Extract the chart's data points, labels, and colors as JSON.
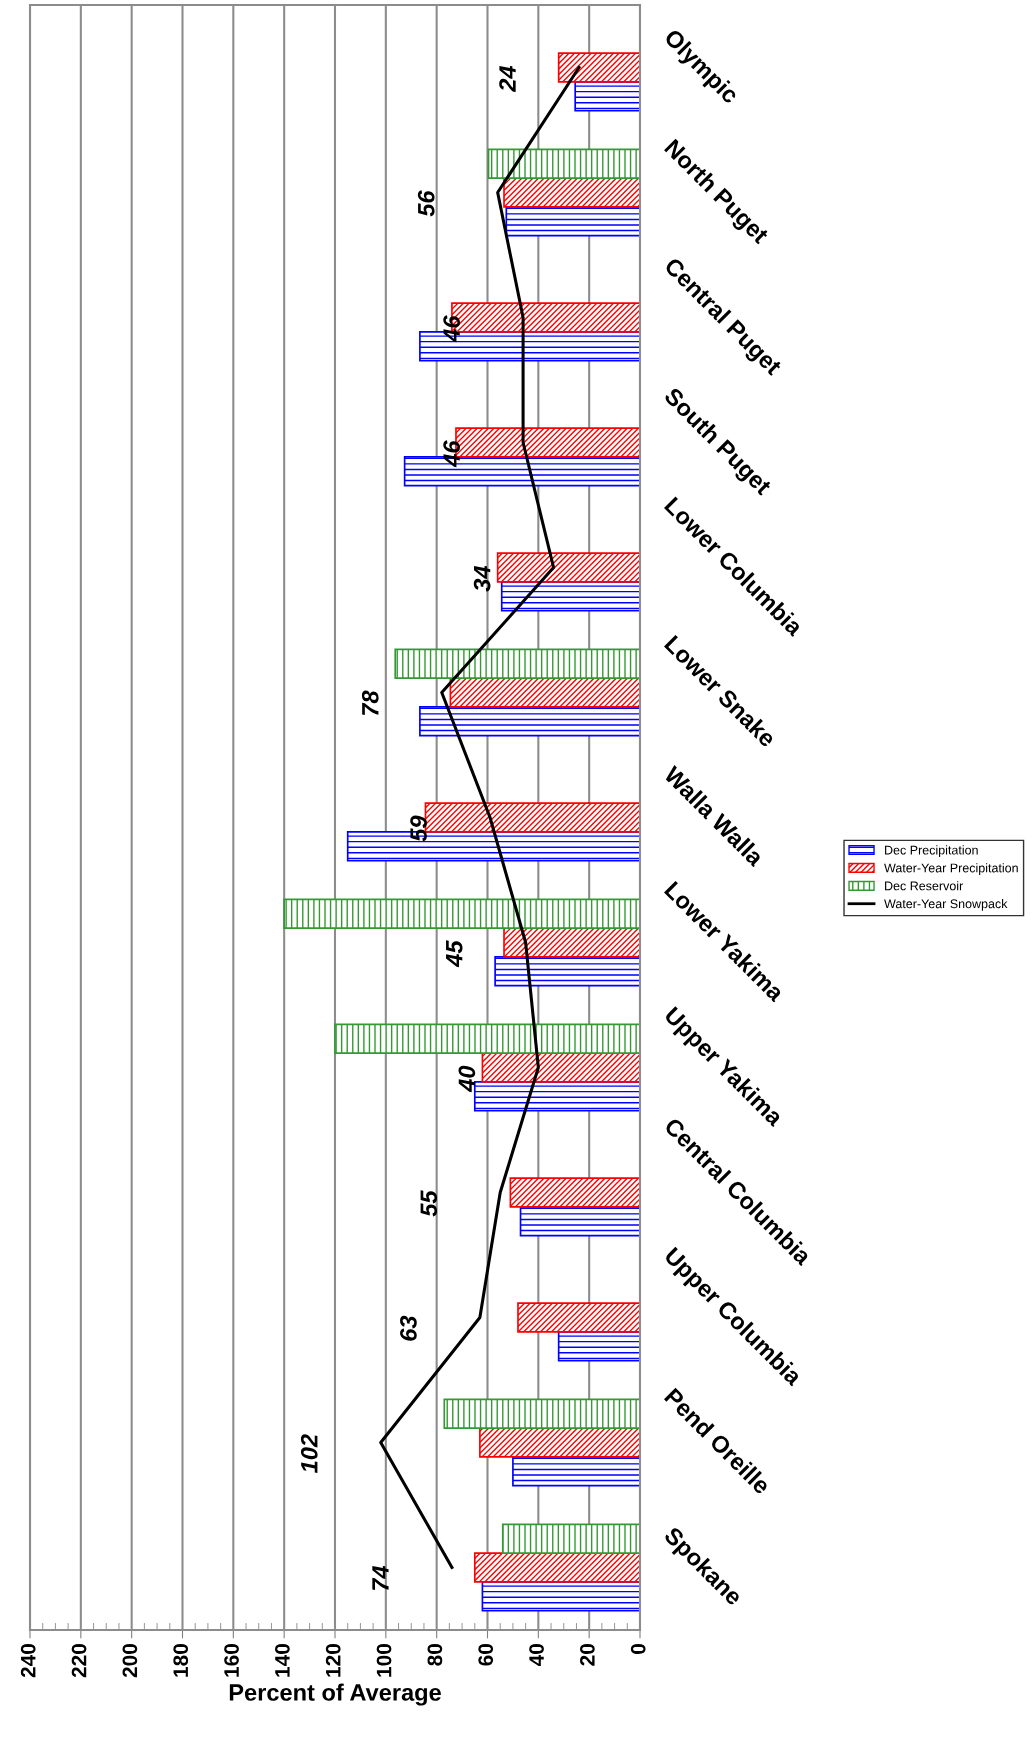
{
  "chart_data": {
    "type": "bar",
    "orientation": "horizontal",
    "xlabel": "Percent of Average",
    "categories": [
      "Olympic",
      "North Puget",
      "Central Puget",
      "South Puget",
      "Lower Columbia",
      "Lower Snake",
      "Walla Walla",
      "Lower Yakima",
      "Upper Yakima",
      "Central Columbia",
      "Upper Columbia",
      "Pend Oreille",
      "Spokane"
    ],
    "series": [
      {
        "name": "Dec Precipitation",
        "color": "#0000ff",
        "values": [
          25.5,
          52.6,
          86.6,
          92.6,
          54.4,
          86.6,
          115,
          57,
          65,
          47,
          32,
          50,
          62
        ]
      },
      {
        "name": "Water-Year Precipitation",
        "color": "#ff0000",
        "values": [
          32,
          53.5,
          74,
          72.4,
          56,
          74.6,
          84.4,
          53.5,
          62,
          51,
          48,
          63,
          65
        ]
      },
      {
        "name": "Dec Reservoir",
        "color": "#339933",
        "values": [
          null,
          59.6,
          null,
          null,
          null,
          96.3,
          null,
          140,
          120,
          null,
          null,
          77,
          54
        ]
      },
      {
        "name": "Water-Year Snowpack",
        "type": "line",
        "color": "#000000",
        "values": [
          24,
          56,
          46,
          46,
          34,
          78,
          59,
          45,
          40,
          55,
          63,
          102,
          74
        ],
        "value_labels": [
          "24",
          "56",
          "46",
          "46",
          "34",
          "78",
          "59",
          "45",
          "40",
          "55",
          "63",
          "102",
          "74"
        ]
      }
    ],
    "xlim": [
      240,
      0
    ],
    "xticks": [
      240,
      220,
      200,
      180,
      160,
      140,
      120,
      100,
      80,
      60,
      40,
      20,
      0
    ],
    "grid": "x",
    "legend": "right"
  }
}
